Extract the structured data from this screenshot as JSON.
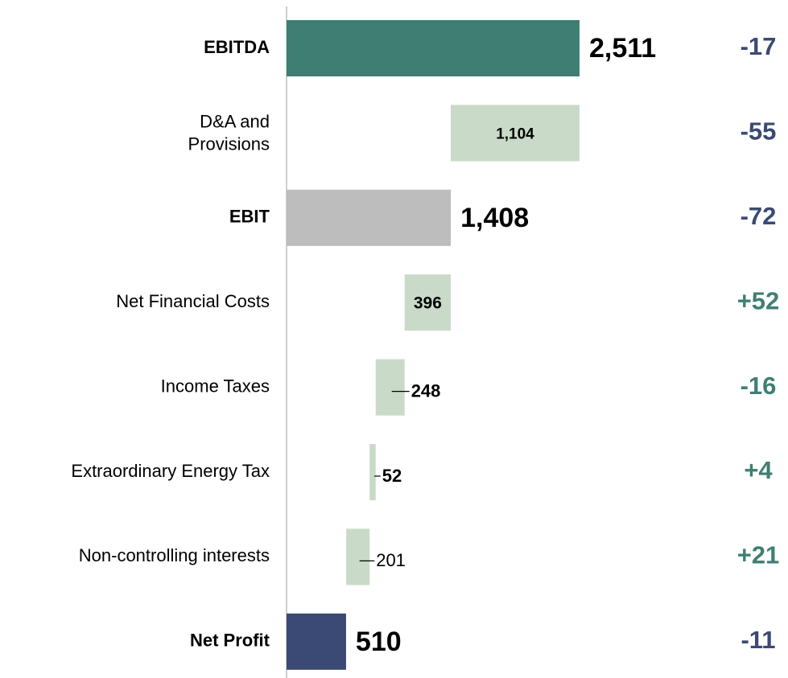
{
  "chart_data": {
    "type": "waterfall",
    "categories": [
      "EBITDA",
      "D&A and Provisions",
      "EBIT",
      "Net Financial Costs",
      "Income Taxes",
      "Extraordinary Energy Tax",
      "Non-controlling interests",
      "Net Profit"
    ],
    "values": [
      2511,
      1104,
      1408,
      396,
      248,
      52,
      201,
      510
    ],
    "value_labels": [
      "2,511",
      "1,104",
      "1,408",
      "396",
      "248",
      "52",
      "201",
      "510"
    ],
    "measures": [
      "total",
      "relative",
      "total",
      "relative",
      "relative",
      "relative",
      "relative",
      "total"
    ],
    "colors": [
      "#3f7f73",
      "#c9dbc8",
      "#bdbdbd",
      "#c9dbc8",
      "#c9dbc8",
      "#c9dbc8",
      "#c9dbc8",
      "#3a4a74"
    ],
    "changes": [
      -17,
      -55,
      -72,
      52,
      -16,
      4,
      21,
      -11
    ],
    "change_labels": [
      "-17",
      "-55",
      "-72",
      "+52",
      "-16",
      "+4",
      "+21",
      "-11"
    ],
    "change_colors": [
      "#3a4a74",
      "#3a4a74",
      "#3a4a74",
      "#3f7f73",
      "#3f7f73",
      "#3f7f73",
      "#3f7f73",
      "#3a4a74"
    ]
  }
}
